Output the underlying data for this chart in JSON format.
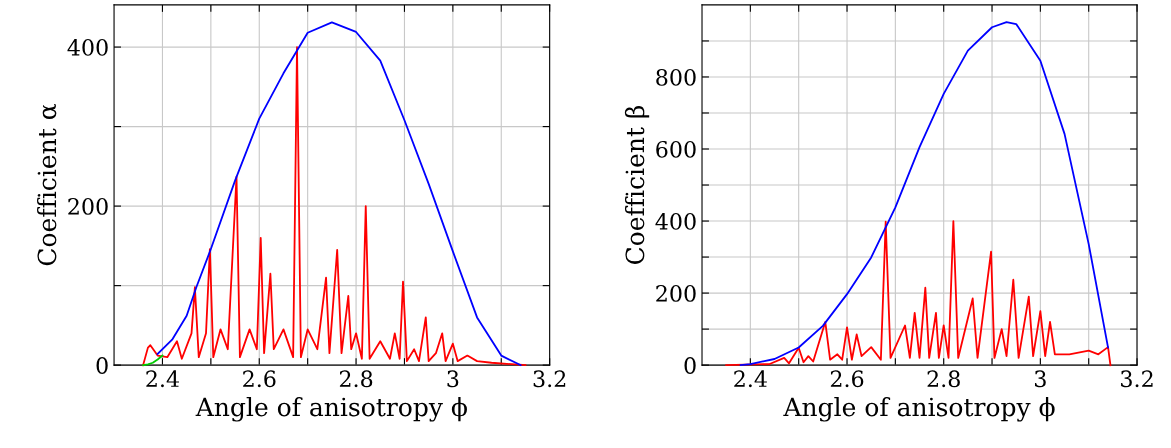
{
  "chart_data": [
    {
      "type": "line",
      "xlabel": "Angle of anisotropy ϕ",
      "ylabel": "Coefficient α",
      "xlim": [
        2.3,
        3.2
      ],
      "ylim": [
        0,
        453
      ],
      "xticks": [
        2.4,
        {
          "value": 2.5,
          "label": null
        },
        2.6,
        {
          "value": 2.7,
          "label": null
        },
        2.8,
        {
          "value": 2.9,
          "label": null
        },
        3,
        {
          "value": 3.1,
          "label": null
        },
        3.2
      ],
      "yticks": [
        0,
        {
          "value": 100,
          "label": null
        },
        200,
        {
          "value": 300,
          "label": null
        },
        400
      ],
      "grid": true,
      "legend": false,
      "series": [
        {
          "color": "#ff0000",
          "x": [
            2.36,
            2.37,
            2.375,
            2.39,
            2.41,
            2.43,
            2.44,
            2.46,
            2.467,
            2.475,
            2.49,
            2.498,
            2.505,
            2.52,
            2.535,
            2.553,
            2.56,
            2.58,
            2.595,
            2.603,
            2.61,
            2.623,
            2.63,
            2.65,
            2.67,
            2.678,
            2.686,
            2.7,
            2.72,
            2.738,
            2.745,
            2.761,
            2.77,
            2.784,
            2.79,
            2.8,
            2.812,
            2.82,
            2.828,
            2.85,
            2.87,
            2.88,
            2.89,
            2.897,
            2.905,
            2.92,
            2.93,
            2.944,
            2.95,
            2.965,
            2.978,
            2.985,
            3.0,
            3.01,
            3.03,
            3.05,
            3.08,
            3.15
          ],
          "values": [
            0,
            22,
            25,
            12,
            10,
            30,
            8,
            40,
            98,
            10,
            40,
            146,
            10,
            45,
            20,
            237,
            10,
            45,
            20,
            160,
            15,
            115,
            20,
            45,
            10,
            400,
            10,
            45,
            20,
            110,
            15,
            145,
            15,
            87,
            20,
            40,
            8,
            200,
            8,
            30,
            8,
            40,
            8,
            105,
            5,
            20,
            5,
            60,
            5,
            15,
            40,
            5,
            27,
            5,
            12,
            5,
            3,
            0
          ]
        },
        {
          "color": "#00cc00",
          "x": [
            2.36,
            2.37,
            2.38,
            2.39,
            2.4
          ],
          "values": [
            0,
            1,
            3,
            7,
            12
          ]
        },
        {
          "color": "#0000ff",
          "x": [
            2.39,
            2.42,
            2.45,
            2.47,
            2.5,
            2.55,
            2.6,
            2.65,
            2.7,
            2.75,
            2.8,
            2.85,
            2.9,
            2.95,
            3.0,
            3.05,
            3.1,
            3.14
          ],
          "values": [
            14,
            32,
            62,
            98,
            146,
            232,
            310,
            367,
            418,
            431,
            419,
            383,
            308,
            228,
            143,
            60,
            12,
            0
          ]
        }
      ]
    },
    {
      "type": "line",
      "xlabel": "Angle of anisotropy ϕ",
      "ylabel": "Coefficient β",
      "xlim": [
        2.3,
        3.2
      ],
      "ylim": [
        0,
        1000
      ],
      "xticks": [
        2.4,
        {
          "value": 2.5,
          "label": null
        },
        2.6,
        {
          "value": 2.7,
          "label": null
        },
        2.8,
        {
          "value": 2.9,
          "label": null
        },
        3,
        {
          "value": 3.1,
          "label": null
        },
        3.2
      ],
      "yticks": [
        0,
        {
          "value": 100,
          "label": null
        },
        200,
        {
          "value": 300,
          "label": null
        },
        400,
        {
          "value": 500,
          "label": null
        },
        600,
        {
          "value": 700,
          "label": null
        },
        800,
        {
          "value": 900,
          "label": null
        }
      ],
      "grid": true,
      "legend": false,
      "series": [
        {
          "color": "#ff0000",
          "x": [
            2.35,
            2.44,
            2.47,
            2.48,
            2.5,
            2.51,
            2.52,
            2.53,
            2.555,
            2.565,
            2.58,
            2.59,
            2.6,
            2.61,
            2.62,
            2.63,
            2.65,
            2.67,
            2.68,
            2.69,
            2.72,
            2.73,
            2.74,
            2.75,
            2.762,
            2.77,
            2.784,
            2.79,
            2.8,
            2.81,
            2.82,
            2.83,
            2.86,
            2.87,
            2.898,
            2.905,
            2.92,
            2.93,
            2.944,
            2.955,
            2.976,
            2.985,
            3.0,
            3.01,
            3.02,
            3.03,
            3.06,
            3.1,
            3.12,
            3.14,
            3.145
          ],
          "values": [
            0,
            3,
            20,
            5,
            48,
            8,
            25,
            10,
            120,
            15,
            30,
            15,
            105,
            15,
            85,
            25,
            50,
            15,
            398,
            20,
            110,
            20,
            145,
            20,
            215,
            20,
            145,
            20,
            110,
            20,
            400,
            20,
            185,
            20,
            315,
            20,
            100,
            25,
            237,
            20,
            190,
            25,
            150,
            25,
            120,
            30,
            30,
            40,
            30,
            50,
            0
          ]
        },
        {
          "color": "#0000ff",
          "x": [
            2.38,
            2.4,
            2.45,
            2.5,
            2.55,
            2.6,
            2.65,
            2.7,
            2.75,
            2.8,
            2.85,
            2.9,
            2.93,
            2.95,
            3.0,
            3.05,
            3.1,
            3.14
          ],
          "values": [
            0,
            3,
            17,
            49,
            109,
            197,
            299,
            438,
            605,
            753,
            873,
            938,
            952,
            947,
            845,
            642,
            336,
            49
          ]
        }
      ]
    }
  ]
}
